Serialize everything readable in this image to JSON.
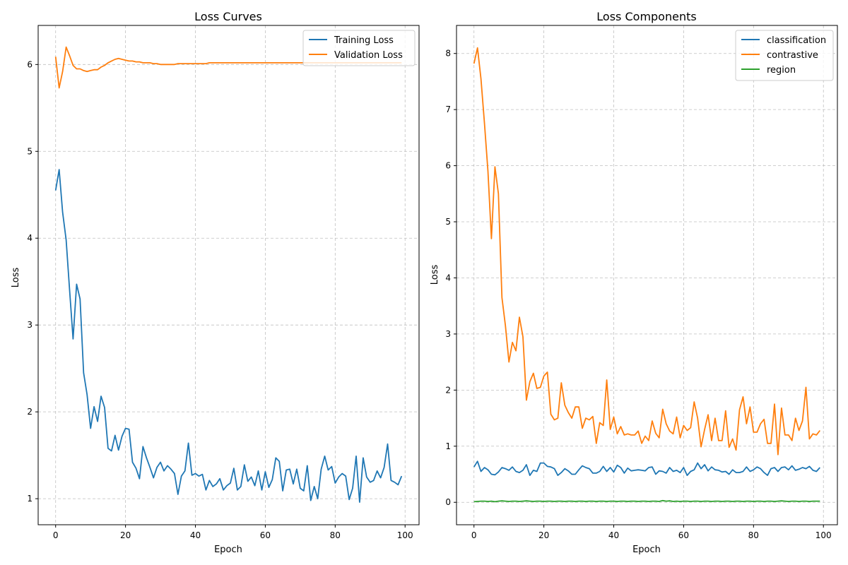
{
  "chart_data": [
    {
      "type": "line",
      "title": "Loss Curves",
      "xlabel": "Epoch",
      "ylabel": "Loss",
      "xlim": [
        -5,
        104
      ],
      "ylim": [
        0.7,
        6.45
      ],
      "xticks": [
        0,
        20,
        40,
        60,
        80,
        100
      ],
      "yticks": [
        1,
        2,
        3,
        4,
        5,
        6
      ],
      "grid": true,
      "legend_position": "top-right",
      "series": [
        {
          "name": "Training Loss",
          "color": "#1f77b4",
          "values": [
            4.55,
            4.79,
            4.3,
            3.98,
            3.4,
            2.84,
            3.47,
            3.3,
            2.45,
            2.2,
            1.81,
            2.06,
            1.89,
            2.18,
            2.05,
            1.58,
            1.55,
            1.73,
            1.56,
            1.72,
            1.81,
            1.8,
            1.42,
            1.35,
            1.23,
            1.6,
            1.47,
            1.36,
            1.24,
            1.36,
            1.42,
            1.32,
            1.38,
            1.34,
            1.29,
            1.05,
            1.26,
            1.32,
            1.64,
            1.27,
            1.29,
            1.26,
            1.28,
            1.1,
            1.21,
            1.14,
            1.17,
            1.23,
            1.1,
            1.15,
            1.18,
            1.35,
            1.1,
            1.14,
            1.39,
            1.2,
            1.25,
            1.15,
            1.32,
            1.1,
            1.31,
            1.13,
            1.22,
            1.47,
            1.43,
            1.09,
            1.33,
            1.34,
            1.17,
            1.34,
            1.12,
            1.09,
            1.38,
            0.98,
            1.14,
            1.0,
            1.34,
            1.49,
            1.33,
            1.37,
            1.18,
            1.25,
            1.29,
            1.26,
            0.99,
            1.12,
            1.49,
            0.96,
            1.47,
            1.25,
            1.19,
            1.21,
            1.32,
            1.24,
            1.36,
            1.63,
            1.21,
            1.19,
            1.16,
            1.26
          ]
        },
        {
          "name": "Validation Loss",
          "color": "#ff7f0e",
          "values": [
            6.09,
            5.73,
            5.92,
            6.2,
            6.1,
            5.99,
            5.95,
            5.95,
            5.93,
            5.92,
            5.93,
            5.94,
            5.94,
            5.97,
            5.99,
            6.02,
            6.04,
            6.06,
            6.07,
            6.06,
            6.05,
            6.04,
            6.04,
            6.03,
            6.03,
            6.02,
            6.02,
            6.02,
            6.01,
            6.01,
            6.0,
            6.0,
            6.0,
            6.0,
            6.0,
            6.01,
            6.01,
            6.01,
            6.01,
            6.01,
            6.01,
            6.01,
            6.01,
            6.01,
            6.02,
            6.02,
            6.02,
            6.02,
            6.02,
            6.02,
            6.02,
            6.02,
            6.02,
            6.02,
            6.02,
            6.02,
            6.02,
            6.02,
            6.02,
            6.02,
            6.02,
            6.02,
            6.02,
            6.02,
            6.02,
            6.02,
            6.02,
            6.02,
            6.02,
            6.02,
            6.02,
            6.02,
            6.02,
            6.02,
            6.02,
            6.02,
            6.02,
            6.02,
            6.02,
            6.02,
            6.02,
            6.02,
            6.02,
            6.02,
            6.02,
            6.02,
            6.02,
            6.02,
            6.02,
            6.02,
            6.02,
            6.02,
            6.02,
            6.02,
            6.02,
            6.02,
            6.02,
            6.02,
            6.02,
            6.02
          ]
        }
      ]
    },
    {
      "type": "line",
      "title": "Loss Components",
      "xlabel": "Epoch",
      "ylabel": "Loss",
      "xlim": [
        -5,
        104
      ],
      "ylim": [
        -0.4,
        8.5
      ],
      "xticks": [
        0,
        20,
        40,
        60,
        80,
        100
      ],
      "yticks": [
        0,
        1,
        2,
        3,
        4,
        5,
        6,
        7,
        8
      ],
      "grid": true,
      "legend_position": "top-right",
      "series": [
        {
          "name": "classification",
          "color": "#1f77b4",
          "values": [
            0.63,
            0.73,
            0.55,
            0.62,
            0.58,
            0.5,
            0.49,
            0.54,
            0.62,
            0.6,
            0.57,
            0.63,
            0.55,
            0.53,
            0.57,
            0.67,
            0.48,
            0.57,
            0.55,
            0.7,
            0.7,
            0.64,
            0.63,
            0.6,
            0.48,
            0.53,
            0.6,
            0.56,
            0.5,
            0.5,
            0.58,
            0.65,
            0.62,
            0.6,
            0.52,
            0.52,
            0.55,
            0.64,
            0.55,
            0.62,
            0.54,
            0.66,
            0.62,
            0.52,
            0.61,
            0.56,
            0.57,
            0.58,
            0.57,
            0.56,
            0.62,
            0.63,
            0.5,
            0.56,
            0.55,
            0.52,
            0.62,
            0.55,
            0.57,
            0.53,
            0.62,
            0.48,
            0.55,
            0.58,
            0.7,
            0.6,
            0.67,
            0.56,
            0.63,
            0.58,
            0.57,
            0.54,
            0.55,
            0.5,
            0.58,
            0.53,
            0.53,
            0.55,
            0.63,
            0.55,
            0.58,
            0.63,
            0.6,
            0.53,
            0.48,
            0.6,
            0.62,
            0.55,
            0.62,
            0.63,
            0.58,
            0.65,
            0.57,
            0.59,
            0.62,
            0.6,
            0.64,
            0.57,
            0.55,
            0.62
          ]
        },
        {
          "name": "contrastive",
          "color": "#ff7f0e",
          "values": [
            7.82,
            8.1,
            7.55,
            6.75,
            5.9,
            4.7,
            5.98,
            5.5,
            3.65,
            3.15,
            2.5,
            2.85,
            2.7,
            3.3,
            2.95,
            1.82,
            2.15,
            2.3,
            2.03,
            2.05,
            2.25,
            2.32,
            1.57,
            1.47,
            1.5,
            2.13,
            1.73,
            1.6,
            1.5,
            1.7,
            1.7,
            1.32,
            1.5,
            1.47,
            1.53,
            1.05,
            1.42,
            1.37,
            2.18,
            1.3,
            1.52,
            1.22,
            1.35,
            1.2,
            1.22,
            1.2,
            1.2,
            1.27,
            1.05,
            1.18,
            1.1,
            1.45,
            1.23,
            1.15,
            1.66,
            1.4,
            1.27,
            1.22,
            1.52,
            1.15,
            1.37,
            1.28,
            1.33,
            1.79,
            1.5,
            0.99,
            1.3,
            1.56,
            1.1,
            1.5,
            1.1,
            1.1,
            1.63,
            0.98,
            1.13,
            0.93,
            1.65,
            1.88,
            1.4,
            1.7,
            1.25,
            1.25,
            1.4,
            1.48,
            1.05,
            1.05,
            1.75,
            0.85,
            1.68,
            1.2,
            1.2,
            1.1,
            1.5,
            1.28,
            1.45,
            2.05,
            1.13,
            1.22,
            1.2,
            1.28
          ]
        },
        {
          "name": "region",
          "color": "#2ca02c",
          "values": [
            0.01,
            0.015,
            0.02,
            0.02,
            0.015,
            0.02,
            0.01,
            0.02,
            0.025,
            0.02,
            0.015,
            0.02,
            0.02,
            0.015,
            0.02,
            0.025,
            0.02,
            0.015,
            0.02,
            0.02,
            0.015,
            0.02,
            0.02,
            0.015,
            0.02,
            0.02,
            0.015,
            0.02,
            0.02,
            0.015,
            0.02,
            0.02,
            0.015,
            0.02,
            0.02,
            0.015,
            0.02,
            0.02,
            0.015,
            0.02,
            0.02,
            0.015,
            0.02,
            0.02,
            0.015,
            0.02,
            0.02,
            0.015,
            0.02,
            0.02,
            0.015,
            0.02,
            0.02,
            0.015,
            0.03,
            0.02,
            0.025,
            0.015,
            0.02,
            0.015,
            0.02,
            0.02,
            0.015,
            0.02,
            0.02,
            0.015,
            0.02,
            0.02,
            0.015,
            0.02,
            0.02,
            0.015,
            0.02,
            0.02,
            0.015,
            0.02,
            0.02,
            0.015,
            0.02,
            0.02,
            0.015,
            0.02,
            0.02,
            0.015,
            0.02,
            0.02,
            0.015,
            0.02,
            0.025,
            0.02,
            0.015,
            0.02,
            0.02,
            0.015,
            0.02,
            0.02,
            0.015,
            0.02,
            0.02,
            0.02
          ]
        }
      ]
    }
  ]
}
